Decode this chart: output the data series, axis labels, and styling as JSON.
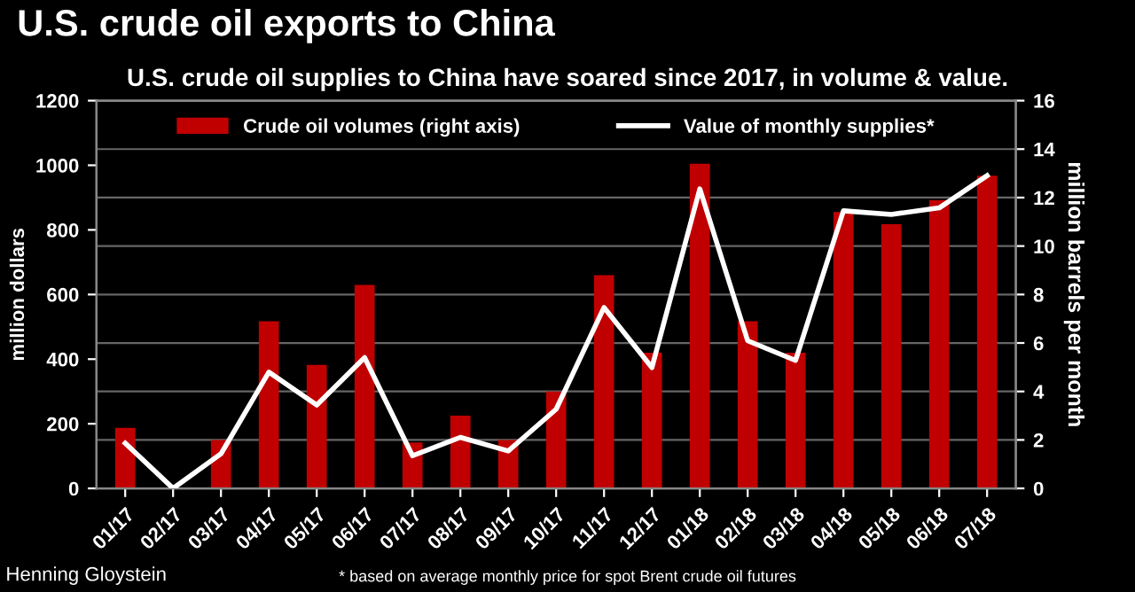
{
  "chart_data": {
    "type": "bar",
    "title": "U.S. crude oil exports to China",
    "subtitle": "U.S. crude oil supplies to China have soared since 2017, in volume & value.",
    "categories": [
      "01/17",
      "02/17",
      "03/17",
      "04/17",
      "05/17",
      "06/17",
      "07/17",
      "08/17",
      "09/17",
      "10/17",
      "11/17",
      "12/17",
      "01/18",
      "02/18",
      "03/18",
      "04/18",
      "05/18",
      "06/18",
      "07/18"
    ],
    "series": [
      {
        "name": "Crude oil volumes (right axis)",
        "axis": "y2",
        "color": "#c00000",
        "values": [
          2.5,
          0,
          2.0,
          6.9,
          5.1,
          8.4,
          1.9,
          3.0,
          2.0,
          4.0,
          8.8,
          5.6,
          13.4,
          6.9,
          5.6,
          11.4,
          10.9,
          11.9,
          12.9
        ]
      },
      {
        "name": "Value of monthly supplies*",
        "type": "line",
        "color": "#ffffff",
        "values": [
          140,
          0,
          107,
          360,
          258,
          405,
          101,
          158,
          116,
          245,
          560,
          374,
          927,
          457,
          396,
          859,
          848,
          868,
          968
        ]
      }
    ],
    "ylabel": "million dollars",
    "y2label": "million barrels per month",
    "ylim": [
      0,
      1200
    ],
    "yticks": [
      0,
      200,
      400,
      600,
      800,
      1000,
      1200
    ],
    "y2lim": [
      0,
      16
    ],
    "y2ticks": [
      0,
      2,
      4,
      6,
      8,
      10,
      12,
      14,
      16
    ],
    "grid": "y",
    "legend": "top",
    "marker": "none",
    "line_style": "solid",
    "annotations": [
      "Henning Gloystein",
      "* based on average monthly price for spot Brent crude oil futures"
    ]
  }
}
